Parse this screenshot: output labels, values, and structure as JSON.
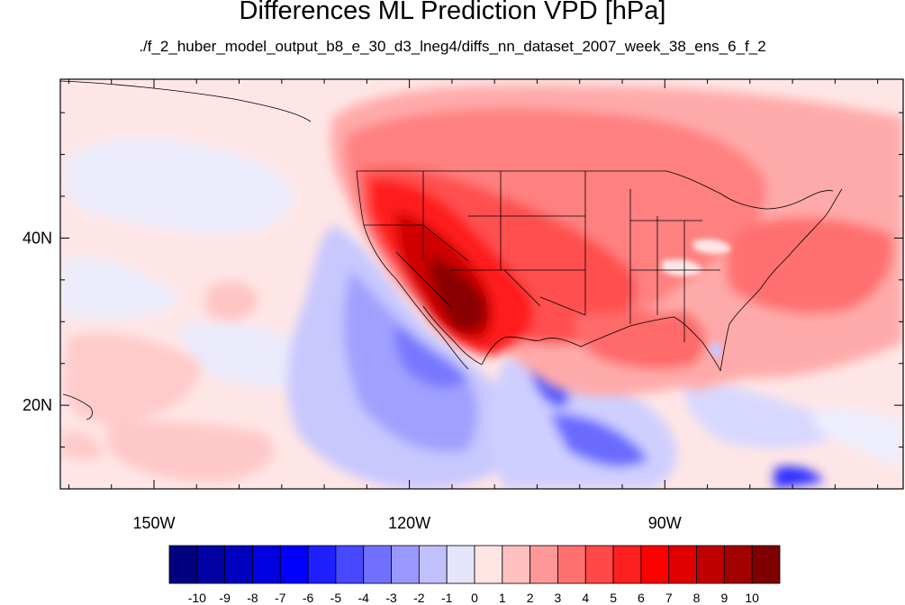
{
  "title": "Differences ML Prediction VPD [hPa]",
  "subtitle": "./f_2_huber_model_output_b8_e_30_d3_lneg4/diffs_nn_dataset_2007_week_38_ens_6_f_2",
  "map": {
    "lon_range": [
      -161,
      -62
    ],
    "lat_range": [
      10,
      59
    ],
    "x_ticks": [
      {
        "lon": -150,
        "label": "150W"
      },
      {
        "lon": -120,
        "label": "120W"
      },
      {
        "lon": -90,
        "label": "90W"
      }
    ],
    "y_ticks": [
      {
        "lat": 40,
        "label": "40N"
      },
      {
        "lat": 20,
        "label": "20N"
      }
    ]
  },
  "colorbar": {
    "labels": [
      "-10",
      "-9",
      "-8",
      "-7",
      "-6",
      "-5",
      "-4",
      "-3",
      "-2",
      "-1",
      "0",
      "1",
      "2",
      "3",
      "4",
      "5",
      "6",
      "7",
      "8",
      "9",
      "10"
    ],
    "colors": [
      "#000080",
      "#0000a3",
      "#0000c0",
      "#0000e0",
      "#0000ff",
      "#2020ff",
      "#4848ff",
      "#7070ff",
      "#9898ff",
      "#c0c0ff",
      "#e4e4fa",
      "#ffe4e4",
      "#ffc0c0",
      "#ff9898",
      "#ff7070",
      "#ff4848",
      "#ff2020",
      "#ff0000",
      "#e00000",
      "#c00000",
      "#a30000",
      "#800000"
    ]
  }
}
